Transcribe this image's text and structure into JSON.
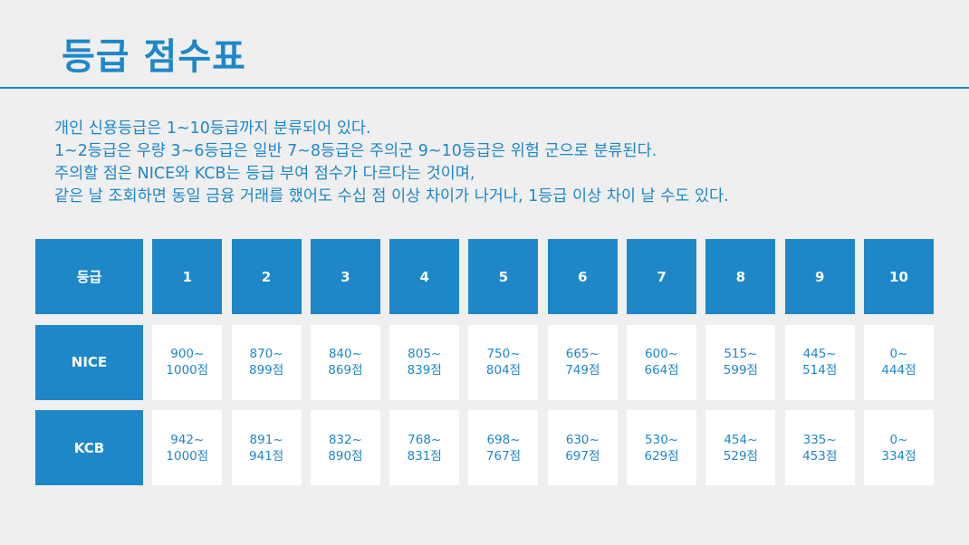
{
  "title": "등급 점수표",
  "description": [
    "개인 신용등급은 1~10등급까지 분류되어 있다.",
    "1~2등급은 우량 3~6등급은 일반 7~8등급은 주의군 9~10등급은 위험 군으로 분류된다.",
    "주의할 점은 NICE와 KCB는 등급 부여 점수가 다르다는 것이며,",
    "같은 날 조회하면 동일 금융 거래를 했어도 수십 점 이상 차이가 나거나, 1등급 이상 차이 날 수도 있다."
  ],
  "table": {
    "corner": "등급",
    "grades": [
      "1",
      "2",
      "3",
      "4",
      "5",
      "6",
      "7",
      "8",
      "9",
      "10"
    ],
    "rows": [
      {
        "name": "NICE",
        "cells": [
          {
            "top": "900~",
            "bottom": "1000점"
          },
          {
            "top": "870~",
            "bottom": "899점"
          },
          {
            "top": "840~",
            "bottom": "869점"
          },
          {
            "top": "805~",
            "bottom": "839점"
          },
          {
            "top": "750~",
            "bottom": "804점"
          },
          {
            "top": "665~",
            "bottom": "749점"
          },
          {
            "top": "600~",
            "bottom": "664점"
          },
          {
            "top": "515~",
            "bottom": "599점"
          },
          {
            "top": "445~",
            "bottom": "514점"
          },
          {
            "top": "0~",
            "bottom": "444점"
          }
        ]
      },
      {
        "name": "KCB",
        "cells": [
          {
            "top": "942~",
            "bottom": "1000점"
          },
          {
            "top": "891~",
            "bottom": "941점"
          },
          {
            "top": "832~",
            "bottom": "890점"
          },
          {
            "top": "768~",
            "bottom": "831점"
          },
          {
            "top": "698~",
            "bottom": "767점"
          },
          {
            "top": "630~",
            "bottom": "697점"
          },
          {
            "top": "530~",
            "bottom": "629점"
          },
          {
            "top": "454~",
            "bottom": "529점"
          },
          {
            "top": "335~",
            "bottom": "453점"
          },
          {
            "top": "0~",
            "bottom": "334점"
          }
        ]
      }
    ]
  }
}
